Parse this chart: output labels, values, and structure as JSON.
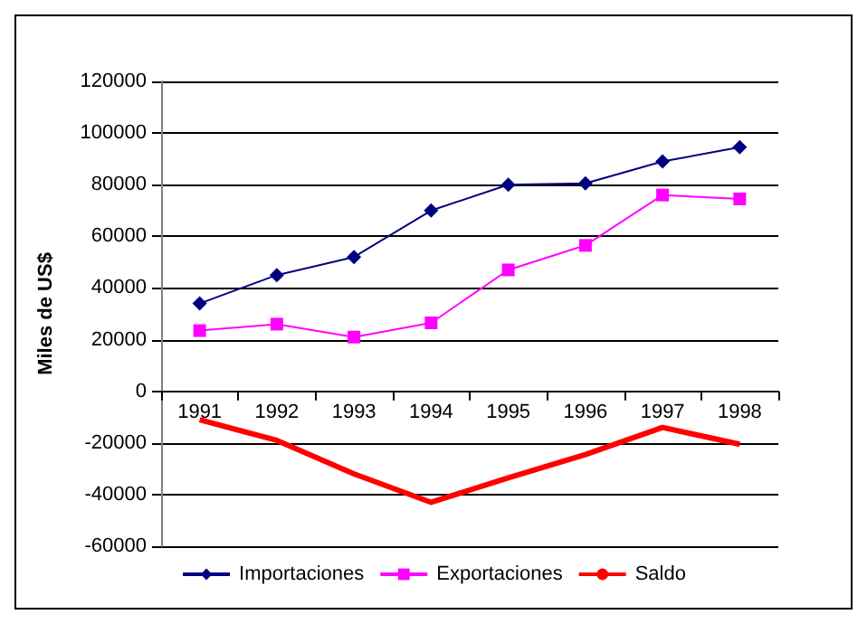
{
  "chart_data": {
    "type": "line",
    "ylabel": "Miles de US$",
    "categories": [
      "1991",
      "1992",
      "1993",
      "1994",
      "1995",
      "1996",
      "1997",
      "1998"
    ],
    "series": [
      {
        "name": "Importaciones",
        "color": "#000080",
        "marker": "diamond",
        "values": [
          34000,
          45000,
          52000,
          70000,
          80000,
          80500,
          89000,
          94500
        ]
      },
      {
        "name": "Exportaciones",
        "color": "#ff00ff",
        "marker": "square",
        "values": [
          23500,
          26000,
          21000,
          26500,
          47000,
          56500,
          76000,
          74500
        ]
      },
      {
        "name": "Saldo",
        "color": "#ff0000",
        "marker": "none",
        "values": [
          -11000,
          -19000,
          -32000,
          -43000,
          -33500,
          -24500,
          -14000,
          -20500
        ]
      }
    ],
    "ylim": [
      -60000,
      120000
    ],
    "yticks": [
      -60000,
      -40000,
      -20000,
      0,
      20000,
      40000,
      60000,
      80000,
      100000,
      120000
    ],
    "grid": "y",
    "legend": "bottom"
  }
}
